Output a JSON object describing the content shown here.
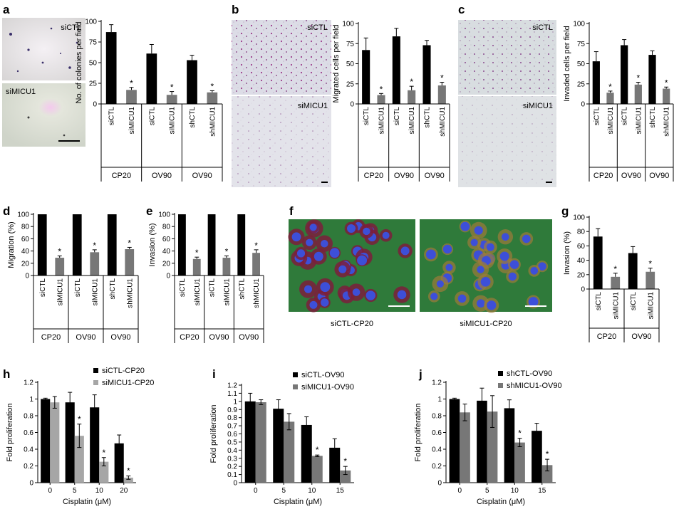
{
  "panels": [
    {
      "id": "a",
      "label": "a"
    },
    {
      "id": "b",
      "label": "b"
    },
    {
      "id": "c",
      "label": "c"
    },
    {
      "id": "d",
      "label": "d"
    },
    {
      "id": "e",
      "label": "e"
    },
    {
      "id": "f",
      "label": "f"
    },
    {
      "id": "g",
      "label": "g"
    },
    {
      "id": "h",
      "label": "h"
    },
    {
      "id": "i",
      "label": "i"
    },
    {
      "id": "j",
      "label": "j"
    }
  ],
  "micrographs": {
    "a": {
      "top": "siCTL",
      "bottom": "siMICU1"
    },
    "b": {
      "top": "siCTL",
      "bottom": "siMICU1"
    },
    "c": {
      "top": "siCTL",
      "bottom": "siMICU1"
    },
    "f": {
      "left": "siCTL-CP20",
      "right": "siMICU1-CP20"
    }
  },
  "colors": {
    "black_bar": "#000000",
    "grey_bar": "#777777",
    "light_bar": "#a6a6a6"
  },
  "chart_data": [
    {
      "id": "a",
      "type": "bar",
      "ylabel": "No. of colonies per field",
      "ylim": [
        0,
        100
      ],
      "yticks": [
        0,
        25,
        50,
        75,
        100
      ],
      "categories": [
        "siCTL",
        "siMICU1",
        "siCTL",
        "siMICU1",
        "shCTL",
        "shMICU1"
      ],
      "values": [
        87,
        17,
        61,
        11,
        53,
        14
      ],
      "errors": [
        9,
        3,
        11,
        4,
        6,
        2
      ],
      "significant": [
        false,
        true,
        false,
        true,
        false,
        true
      ],
      "groups": [
        "CP20",
        "OV90",
        "OV90"
      ]
    },
    {
      "id": "b",
      "type": "bar",
      "ylabel": "Migrated cells per field",
      "ylim": [
        0,
        100
      ],
      "yticks": [
        0,
        25,
        50,
        75,
        100
      ],
      "categories": [
        "siCTL",
        "siMICU1",
        "siCTL",
        "siMICU1",
        "shCTL",
        "shMICU1"
      ],
      "values": [
        67,
        11,
        84,
        17,
        73,
        23
      ],
      "errors": [
        15,
        2,
        10,
        5,
        6,
        4
      ],
      "significant": [
        false,
        true,
        false,
        true,
        false,
        true
      ],
      "groups": [
        "CP20",
        "OV90",
        "OV90"
      ]
    },
    {
      "id": "c",
      "type": "bar",
      "ylabel": "Invaded cells per field",
      "ylim": [
        0,
        100
      ],
      "yticks": [
        0,
        25,
        50,
        75,
        100
      ],
      "categories": [
        "siCTL",
        "siMICU1",
        "siCTL",
        "siMICU1",
        "shCTL",
        "shMICU1"
      ],
      "values": [
        53,
        14,
        73,
        24,
        61,
        19
      ],
      "errors": [
        12,
        2,
        7,
        3,
        5,
        2
      ],
      "significant": [
        false,
        true,
        false,
        true,
        false,
        true
      ],
      "groups": [
        "CP20",
        "OV90",
        "OV90"
      ]
    },
    {
      "id": "d",
      "type": "bar",
      "ylabel": "Migration (%)",
      "ylim": [
        0,
        100
      ],
      "yticks": [
        0,
        20,
        40,
        60,
        80,
        100
      ],
      "categories": [
        "siCTL",
        "siMICU1",
        "siCTL",
        "siMICU1",
        "shCTL",
        "shMICU1"
      ],
      "values": [
        100,
        29,
        100,
        38,
        100,
        43
      ],
      "errors": [
        0,
        3,
        0,
        4,
        0,
        3
      ],
      "significant": [
        false,
        true,
        false,
        true,
        false,
        true
      ],
      "groups": [
        "CP20",
        "OV90",
        "OV90"
      ]
    },
    {
      "id": "e",
      "type": "bar",
      "ylabel": "Invasion (%)",
      "ylim": [
        0,
        100
      ],
      "yticks": [
        0,
        20,
        40,
        60,
        80,
        100
      ],
      "categories": [
        "siCTL",
        "siMICU1",
        "siCTL",
        "siMICU1",
        "shCTL",
        "shMICU1"
      ],
      "values": [
        100,
        27,
        100,
        29,
        100,
        37
      ],
      "errors": [
        0,
        3,
        0,
        3,
        0,
        5
      ],
      "significant": [
        false,
        true,
        false,
        true,
        false,
        true
      ],
      "groups": [
        "CP20",
        "OV90",
        "OV90"
      ]
    },
    {
      "id": "g",
      "type": "bar",
      "ylabel": "Invasion (%)",
      "ylim": [
        0,
        100
      ],
      "yticks": [
        0,
        20,
        40,
        60,
        80,
        100
      ],
      "categories": [
        "siCTL",
        "siMICU1",
        "siCTL",
        "siMICU1"
      ],
      "values": [
        73,
        17,
        50,
        24
      ],
      "errors": [
        11,
        5,
        9,
        5
      ],
      "significant": [
        false,
        true,
        false,
        true
      ],
      "groups": [
        "CP20",
        "OV90"
      ]
    },
    {
      "id": "h",
      "type": "bar",
      "xlabel": "Cisplatin (μM)",
      "ylabel": "Fold proliferation",
      "ylim": [
        0,
        1.2
      ],
      "yticks": [
        "0",
        "0.2",
        "0.4",
        "0.6",
        "0.8",
        "1",
        "1.2"
      ],
      "categories": [
        "0",
        "5",
        "10",
        "20"
      ],
      "series": [
        {
          "name": "siCTL-CP20",
          "color": "#000000",
          "values": [
            1.0,
            0.96,
            0.9,
            0.47
          ],
          "errors": [
            0.01,
            0.12,
            0.15,
            0.1
          ],
          "significant": [
            false,
            false,
            false,
            false
          ]
        },
        {
          "name": "siMICU1-CP20",
          "color": "#a6a6a6",
          "values": [
            0.96,
            0.56,
            0.25,
            0.06
          ],
          "errors": [
            0.07,
            0.14,
            0.05,
            0.02
          ],
          "significant": [
            false,
            true,
            true,
            true
          ]
        }
      ]
    },
    {
      "id": "i",
      "type": "bar",
      "xlabel": "Cisplatin (μM)",
      "ylabel": "Fold proliferation",
      "ylim": [
        0,
        1.2
      ],
      "yticks": [
        "0",
        "0.1",
        "0.2",
        "0.3",
        "0.4",
        "0.5",
        "0.6",
        "0.7",
        "0.8",
        "0.9",
        "1",
        "1.1",
        "1.2"
      ],
      "categories": [
        "0",
        "5",
        "10",
        "15"
      ],
      "series": [
        {
          "name": "siCTL-OV90",
          "color": "#000000",
          "values": [
            1.0,
            0.91,
            0.71,
            0.43
          ],
          "errors": [
            0.1,
            0.11,
            0.1,
            0.11
          ],
          "significant": [
            false,
            false,
            false,
            false
          ]
        },
        {
          "name": "siMICU1-OV90",
          "color": "#777777",
          "values": [
            0.99,
            0.75,
            0.33,
            0.15
          ],
          "errors": [
            0.03,
            0.1,
            0.01,
            0.05
          ],
          "significant": [
            false,
            false,
            true,
            true
          ]
        }
      ]
    },
    {
      "id": "j",
      "type": "bar",
      "xlabel": "Cisplatin (μM)",
      "ylabel": "Fold proliferation",
      "ylim": [
        0,
        1.2
      ],
      "yticks": [
        "0",
        "0.2",
        "0.4",
        "0.6",
        "0.8",
        "1",
        "1.2"
      ],
      "categories": [
        "0",
        "5",
        "10",
        "15"
      ],
      "series": [
        {
          "name": "shCTL-OV90",
          "color": "#000000",
          "values": [
            1.0,
            0.98,
            0.89,
            0.62
          ],
          "errors": [
            0.01,
            0.15,
            0.1,
            0.09
          ],
          "significant": [
            false,
            false,
            false,
            false
          ]
        },
        {
          "name": "shMICU1-OV90",
          "color": "#777777",
          "values": [
            0.84,
            0.85,
            0.48,
            0.21
          ],
          "errors": [
            0.1,
            0.19,
            0.05,
            0.07
          ],
          "significant": [
            false,
            false,
            true,
            true
          ]
        }
      ]
    }
  ]
}
